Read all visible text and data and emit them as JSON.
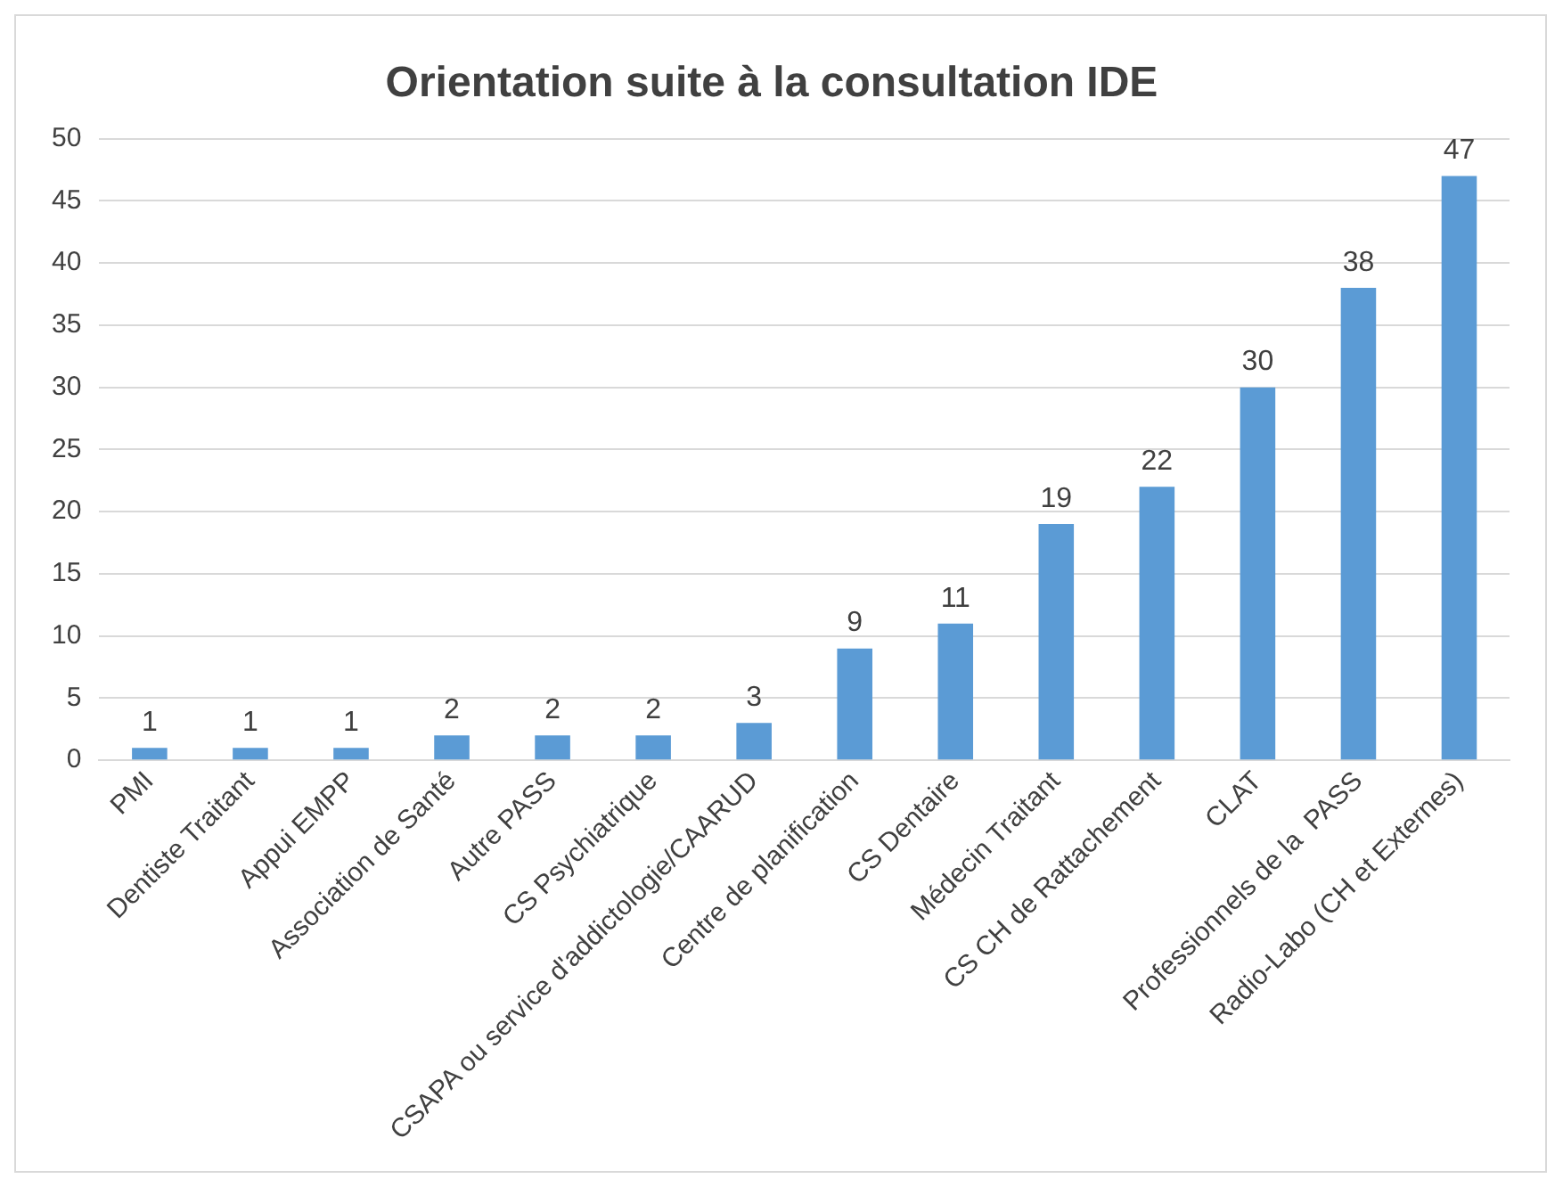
{
  "chart_data": {
    "type": "bar",
    "title": "Orientation suite à la consultation IDE",
    "categories": [
      "PMI",
      "Dentiste Traitant",
      "Appui EMPP",
      "Association de Santé",
      "Autre PASS",
      "CS Psychiatrique",
      "CSAPA ou service d'addictologie/CAARUD",
      "Centre de planification",
      "CS Dentaire",
      "Médecin Traitant",
      "CS CH de Rattachement",
      "CLAT",
      "Professionnels de la  PASS",
      "Radio-Labo (CH et Externes)"
    ],
    "values": [
      1,
      1,
      1,
      2,
      2,
      2,
      3,
      9,
      11,
      19,
      22,
      30,
      38,
      47
    ],
    "color": "#5b9bd5",
    "ylim": [
      0,
      50
    ],
    "yticks": [
      0,
      5,
      10,
      15,
      20,
      25,
      30,
      35,
      40,
      45,
      50
    ],
    "grid": "y",
    "data_labels": true,
    "legend": false
  }
}
